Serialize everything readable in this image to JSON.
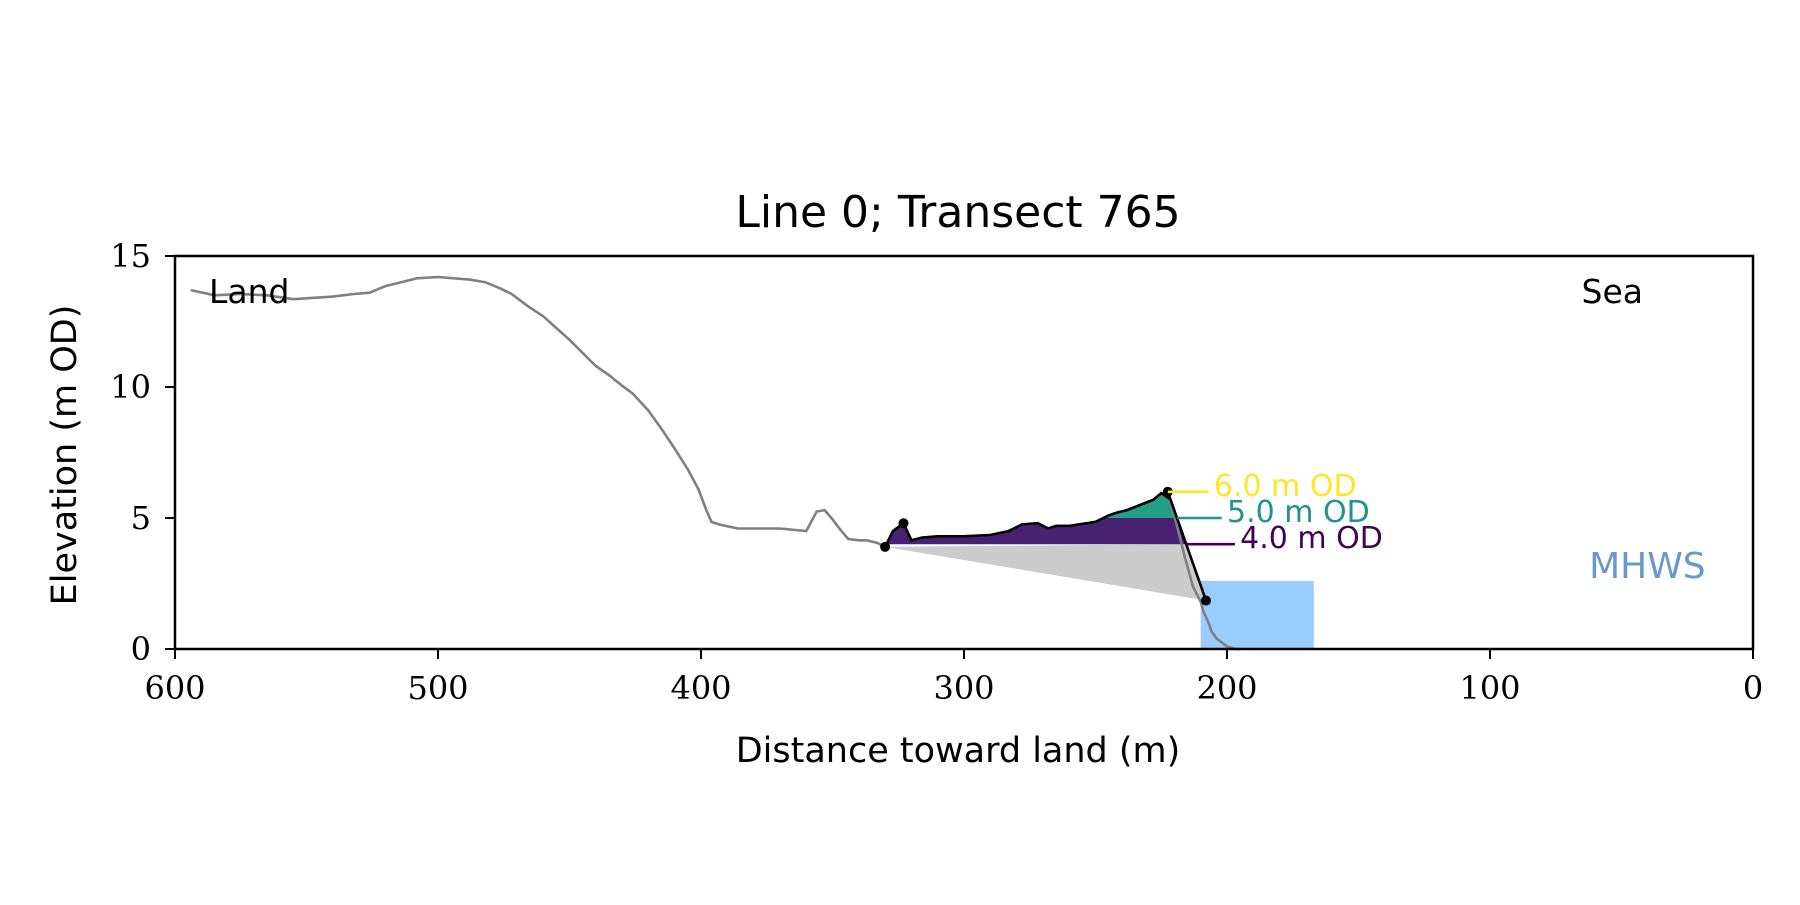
{
  "chart_data": {
    "type": "line",
    "title": "Line 0; Transect 765",
    "xlabel": "Distance toward land (m)",
    "ylabel": "Elevation (m OD)",
    "xlim": [
      600,
      0
    ],
    "ylim": [
      0,
      15
    ],
    "x_ticks": [
      600,
      500,
      400,
      300,
      200,
      100,
      0
    ],
    "y_ticks": [
      0,
      5,
      10,
      15
    ],
    "grid": false,
    "corner_labels": {
      "left": "Land",
      "right": "Sea"
    },
    "profile": {
      "color": "#808080",
      "x": [
        594,
        585,
        575,
        565,
        555,
        548,
        540,
        532,
        526,
        520,
        514,
        508,
        500,
        494,
        488,
        482,
        476,
        472,
        466,
        460,
        455,
        450,
        445,
        440,
        435,
        430,
        426,
        420,
        415,
        410,
        405,
        401,
        398,
        396,
        393,
        386,
        380,
        370,
        360,
        356,
        353,
        350,
        347,
        344,
        340,
        337,
        333,
        330,
        327,
        323,
        320,
        316,
        310,
        300,
        290,
        283,
        278,
        272,
        268,
        265,
        260,
        250,
        245,
        242,
        238,
        233,
        228,
        225,
        222,
        219,
        216,
        213,
        210,
        209,
        207,
        206,
        204,
        200,
        197,
        195
      ],
      "y": [
        13.7,
        13.5,
        13.55,
        13.5,
        13.35,
        13.4,
        13.45,
        13.55,
        13.6,
        13.85,
        14.0,
        14.15,
        14.2,
        14.15,
        14.1,
        14.0,
        13.75,
        13.55,
        13.1,
        12.7,
        12.25,
        11.8,
        11.3,
        10.8,
        10.45,
        10.05,
        9.75,
        9.1,
        8.4,
        7.65,
        6.85,
        6.1,
        5.3,
        4.85,
        4.75,
        4.6,
        4.6,
        4.6,
        4.5,
        5.25,
        5.3,
        4.95,
        4.55,
        4.2,
        4.15,
        4.15,
        4.05,
        3.9,
        4.5,
        4.8,
        4.15,
        4.25,
        4.3,
        4.3,
        4.35,
        4.5,
        4.75,
        4.8,
        4.6,
        4.7,
        4.7,
        4.85,
        5.1,
        5.2,
        5.3,
        5.5,
        5.7,
        5.95,
        5.75,
        4.7,
        3.5,
        2.4,
        1.8,
        1.45,
        1.0,
        0.7,
        0.4,
        0.1,
        0.0,
        0.0
      ]
    },
    "polyline_points": [
      {
        "x": 330,
        "y": 3.9
      },
      {
        "x": 222.5,
        "y": 6.0
      },
      {
        "x": 208,
        "y": 1.85
      }
    ],
    "marked_point": {
      "x": 323,
      "y": 4.8
    },
    "wedge_color": "#cccccc",
    "levels": [
      {
        "label": "4.0 m OD",
        "value": 4.0,
        "color": "#440154",
        "fill": "#482173"
      },
      {
        "label": "5.0 m OD",
        "value": 5.0,
        "color": "#21918c",
        "fill": "#21a085"
      },
      {
        "label": "6.0 m OD",
        "value": 6.0,
        "color": "#fde725"
      }
    ],
    "mhws": {
      "label": "MHWS",
      "x_from": 210,
      "x_to": 167,
      "y": 2.6,
      "fill": "#99ccff",
      "label_color": "#6699cc"
    },
    "colors": {
      "axis": "#000000",
      "profile": "#808080",
      "outline": "#000000"
    }
  }
}
